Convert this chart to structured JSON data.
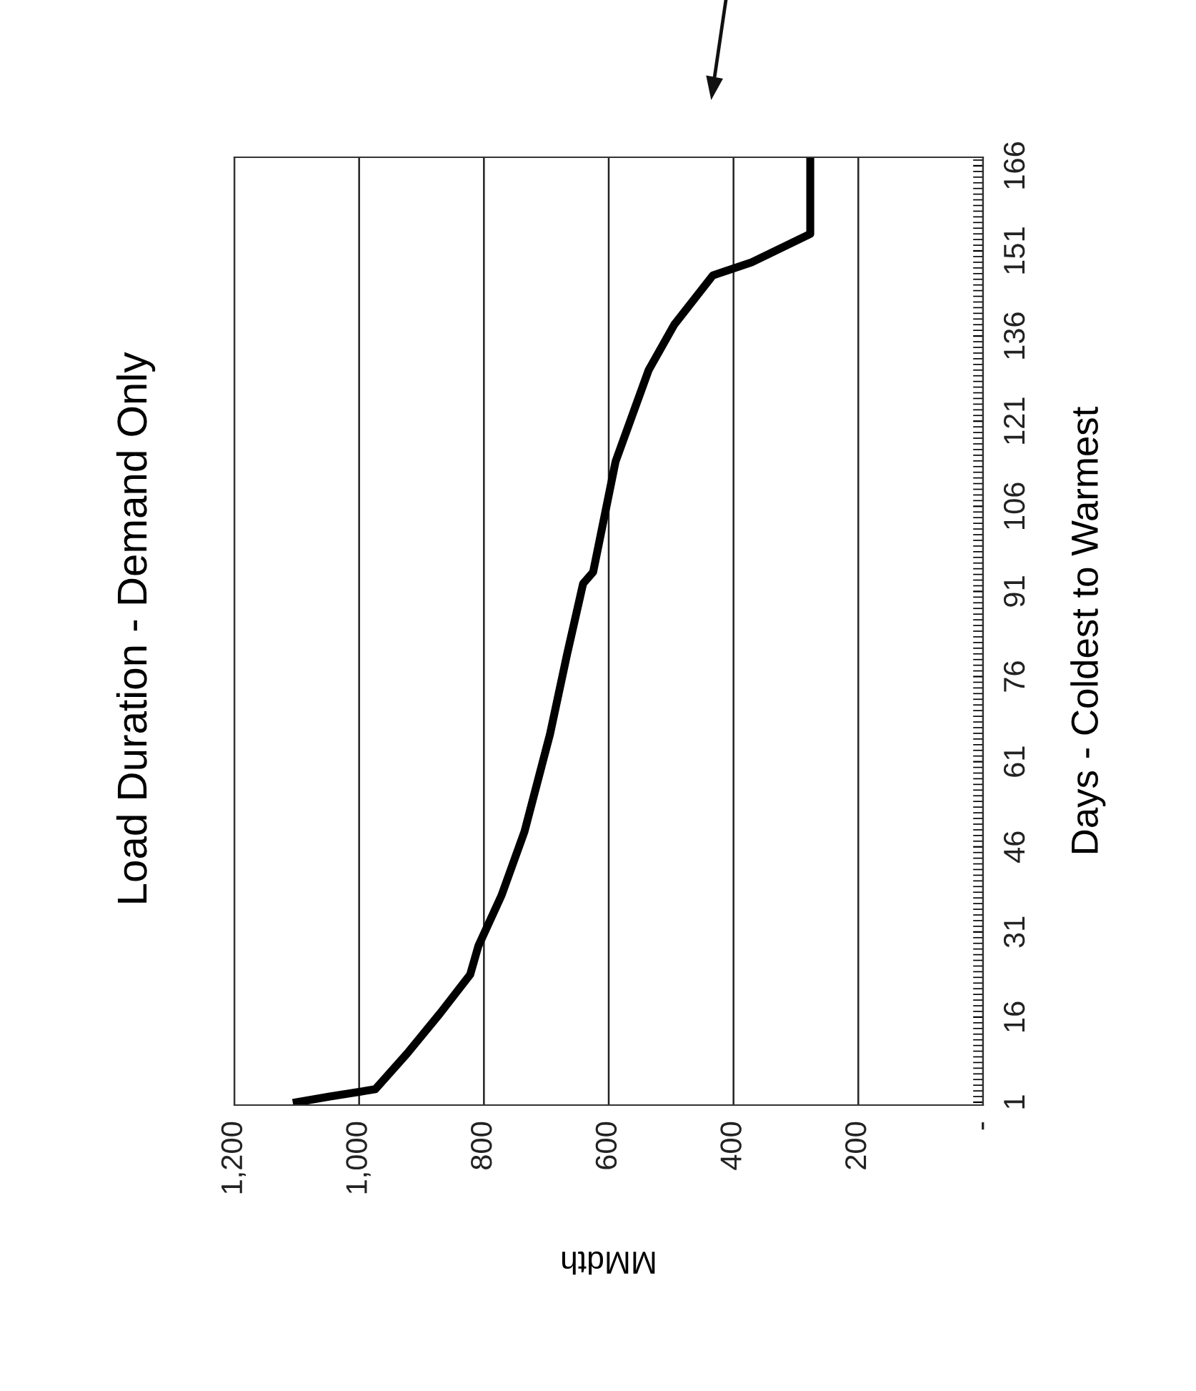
{
  "chart_data": {
    "type": "line",
    "title": "Load Duration - Demand Only",
    "xlabel": "MMdth",
    "ylabel": "Days - Coldest to Warmest",
    "x": [
      1100,
      1047,
      974,
      923,
      870,
      822,
      809,
      772,
      735,
      694,
      667,
      641,
      625,
      589,
      536,
      495,
      433,
      371,
      277,
      277
    ],
    "series": [
      {
        "color": "#000000",
        "values": [
          1,
          2,
          3.3,
          9.6,
          16.7,
          23.5,
          28.5,
          37.4,
          48.7,
          65.9,
          79.8,
          92.4,
          94.4,
          113.9,
          130,
          138,
          146.7,
          149,
          154,
          167
        ]
      }
    ],
    "ylim": [
      0.5,
      167.5
    ],
    "yticks": [
      1,
      16,
      31,
      46,
      61,
      76,
      91,
      106,
      121,
      136,
      151,
      166
    ],
    "xlim": [
      1200,
      0
    ],
    "xticks": [
      {
        "value": 0,
        "label": "-"
      },
      200,
      400,
      600,
      800,
      {
        "value": 1000,
        "label": "1,000"
      },
      {
        "value": 1200,
        "label": "1,200"
      }
    ],
    "grid": "x",
    "marker": "none",
    "line_style": "solid",
    "legend": false
  }
}
